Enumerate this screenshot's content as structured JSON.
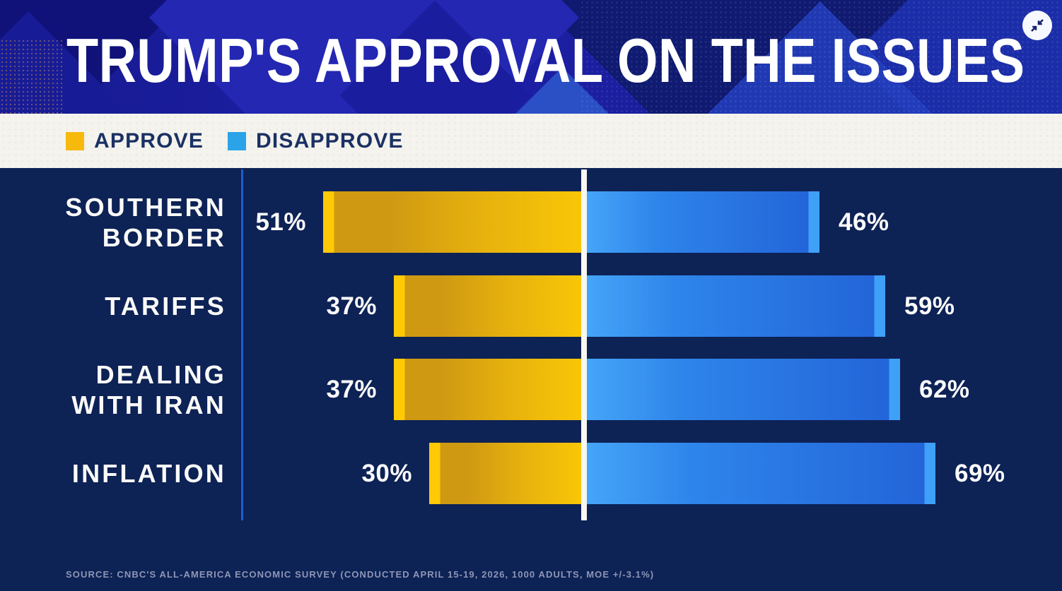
{
  "header": {
    "title": "TRUMP'S APPROVAL ON THE ISSUES"
  },
  "controls": {
    "collapse_button": "collapse-arrows-icon"
  },
  "legend": {
    "approve_label": "APPROVE",
    "disapprove_label": "DISAPPROVE",
    "position": "top"
  },
  "chart_data": {
    "type": "bar",
    "orientation": "horizontal-diverging",
    "title": "TRUMP'S APPROVAL ON THE ISSUES",
    "categories": [
      "SOUTHERN BORDER",
      "TARIFFS",
      "DEALING WITH IRAN",
      "INFLATION"
    ],
    "category_lines": [
      [
        "SOUTHERN",
        "BORDER"
      ],
      [
        "TARIFFS"
      ],
      [
        "DEALING",
        "WITH IRAN"
      ],
      [
        "INFLATION"
      ]
    ],
    "series": [
      {
        "name": "APPROVE",
        "values": [
          51,
          37,
          37,
          30
        ]
      },
      {
        "name": "DISAPPROVE",
        "values": [
          46,
          59,
          62,
          69
        ]
      }
    ],
    "value_suffix": "%",
    "value_range": [
      0,
      100
    ],
    "grid": false,
    "baseline": "center"
  },
  "source": "SOURCE: CNBC'S ALL-AMERICA ECONOMIC SURVEY (CONDUCTED APRIL 15-19, 2026, 1000 ADULTS, MOE +/-3.1%)",
  "colors": {
    "approve": "#F7B90C",
    "disapprove": "#2AA3E9",
    "approve_bar_cap": "#FFC906",
    "approve_bar_dark": "#CF9A12",
    "approve_bar_bright": "#F9C607",
    "disapprove_bar_light": "#45A5F8",
    "disapprove_bar_dark": "#2365D9",
    "disapprove_bar_cap": "#3FA0F8",
    "header_bg": "#1B1EA4",
    "chart_bg": "#0D2255",
    "legend_bg": "#F4F3EE",
    "legend_text": "#1B3163",
    "axis_line": "#1E5ECE",
    "center_line": "#F8F7F2",
    "title_text": "#FFFFFF",
    "source_text": "#8E96B5"
  }
}
